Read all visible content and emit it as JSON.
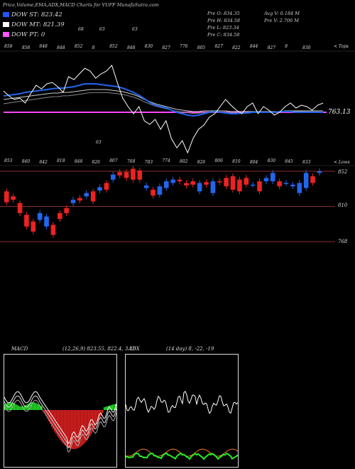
{
  "header": {
    "title": "Price,Volume,EMA,ADX,MACD Charts for VUFF MunafaSutra.com",
    "stats": [
      [
        "Pre O: 834.35",
        "Avg V: 0.184 M"
      ],
      [
        "Pre H: 834.58",
        "Pre V: 2.706 M"
      ],
      [
        "Pre L: 823.34",
        ""
      ],
      [
        "Pre C: 834.58",
        ""
      ]
    ]
  },
  "legend": [
    {
      "label": "DOW ST: 823.42",
      "color": "#2255ff"
    },
    {
      "label": "DOW MT: 821.39",
      "color": "#ffffff"
    },
    {
      "label": "DOW PT: 0",
      "color": "#ff55ff"
    }
  ],
  "ema_panel": {
    "top_labels": [
      "858",
      "858",
      "848",
      "848",
      "852",
      "8",
      "852",
      "848",
      "830",
      "827",
      "776",
      "805",
      "827",
      "822",
      "844",
      "827",
      "8",
      "830"
    ],
    "top_extra": [
      "68",
      "63",
      "63"
    ],
    "bottom_labels": [
      "853",
      "840",
      "842",
      "818",
      "848",
      "826",
      "807",
      "768",
      "783",
      "774",
      "802",
      "826",
      "806",
      "810",
      "804",
      "830",
      "845",
      "833"
    ],
    "bottom_extra": "63",
    "corner_top": "< Tops",
    "corner_bottom": "< Lows",
    "last_value": "763.13",
    "colors": {
      "price": "#ffffff",
      "ema_fast": "#2266ee",
      "ema_slow": "#cccccc",
      "pt": "#ff44ff"
    }
  },
  "candle_panel": {
    "levels": [
      "852",
      "810",
      "768"
    ],
    "up_color": "#2266ee",
    "down_color": "#ee2222"
  },
  "chart_data": {
    "type": "candlestick",
    "y_levels": [
      852,
      810,
      768
    ],
    "candles": [
      [
        828,
        815
      ],
      [
        822,
        818
      ],
      [
        814,
        802
      ],
      [
        800,
        786
      ],
      [
        792,
        780
      ],
      [
        794,
        802
      ],
      [
        786,
        798
      ],
      [
        788,
        776
      ],
      [
        802,
        795
      ],
      [
        808,
        802
      ],
      [
        814,
        818
      ],
      [
        820,
        817
      ],
      [
        822,
        826
      ],
      [
        828,
        816
      ],
      [
        829,
        833
      ],
      [
        838,
        830
      ],
      [
        842,
        848
      ],
      [
        851,
        847
      ],
      [
        851,
        844
      ],
      [
        855,
        842
      ],
      [
        853,
        842
      ],
      [
        832,
        835
      ],
      [
        830,
        823
      ],
      [
        824,
        834
      ],
      [
        832,
        840
      ],
      [
        838,
        842
      ],
      [
        842,
        840
      ],
      [
        838,
        835
      ],
      [
        840,
        836
      ],
      [
        828,
        838
      ],
      [
        839,
        836
      ],
      [
        826,
        840
      ],
      [
        840,
        839
      ],
      [
        844,
        834
      ],
      [
        846,
        830
      ],
      [
        842,
        828
      ],
      [
        844,
        836
      ],
      [
        836,
        836
      ],
      [
        840,
        828
      ],
      [
        840,
        844
      ],
      [
        840,
        850
      ],
      [
        840,
        834
      ],
      [
        838,
        838
      ],
      [
        834,
        836
      ],
      [
        826,
        838
      ],
      [
        832,
        850
      ],
      [
        846,
        838
      ],
      [
        850,
        852
      ]
    ]
  },
  "macd_panel": {
    "label": "MACD",
    "params": "(12,26,9) 823.55, 822.4, 3.15",
    "hist_pos_color": "#22ee22",
    "hist_neg_color": "#ee2222"
  },
  "adx_panel": {
    "label": "ADX",
    "params": "(14 day) 8, -22, -19",
    "colors": {
      "adx": "#ffffff",
      "plus_di": "#22ee22",
      "minus_di": "#ee7722"
    }
  }
}
